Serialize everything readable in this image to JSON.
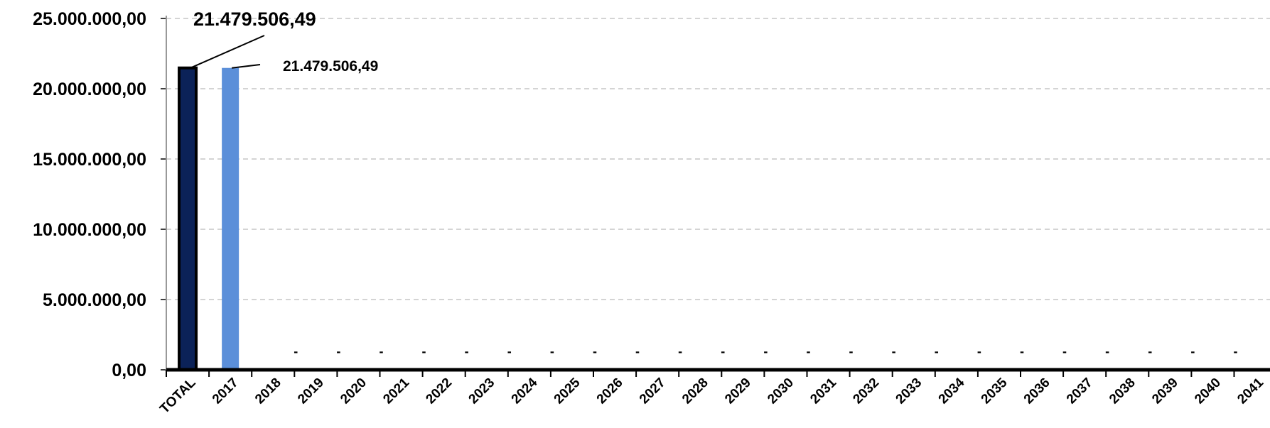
{
  "chart_data": {
    "type": "bar",
    "categories": [
      "TOTAL",
      "2017",
      "2018",
      "2019",
      "2020",
      "2021",
      "2022",
      "2023",
      "2024",
      "2025",
      "2026",
      "2027",
      "2028",
      "2029",
      "2030",
      "2031",
      "2032",
      "2033",
      "2034",
      "2035",
      "2036",
      "2037",
      "2038",
      "2039",
      "2040",
      "2041"
    ],
    "values": [
      21479506.49,
      21479506.49,
      0,
      0,
      0,
      0,
      0,
      0,
      0,
      0,
      0,
      0,
      0,
      0,
      0,
      0,
      0,
      0,
      0,
      0,
      0,
      0,
      0,
      0,
      0,
      0
    ],
    "data_labels": [
      "21.479.506,49",
      "21.479.506,49",
      "-",
      "-",
      "-",
      "-",
      "-",
      "-",
      "-",
      "-",
      "-",
      "-",
      "-",
      "-",
      "-",
      "-",
      "-",
      "-",
      "-",
      "-",
      "-",
      "-",
      "-",
      "-",
      "-",
      "-"
    ],
    "yticks": [
      "0,00",
      "5.000.000,00",
      "10.000.000,00",
      "15.000.000,00",
      "20.000.000,00",
      "25.000.000,00"
    ],
    "ylim": [
      0,
      25000000
    ],
    "grid": true,
    "colors": {
      "total": "#0b2258",
      "year": "#5b8fd9",
      "grid": "#d4d4d4",
      "axis": "#000000"
    }
  }
}
